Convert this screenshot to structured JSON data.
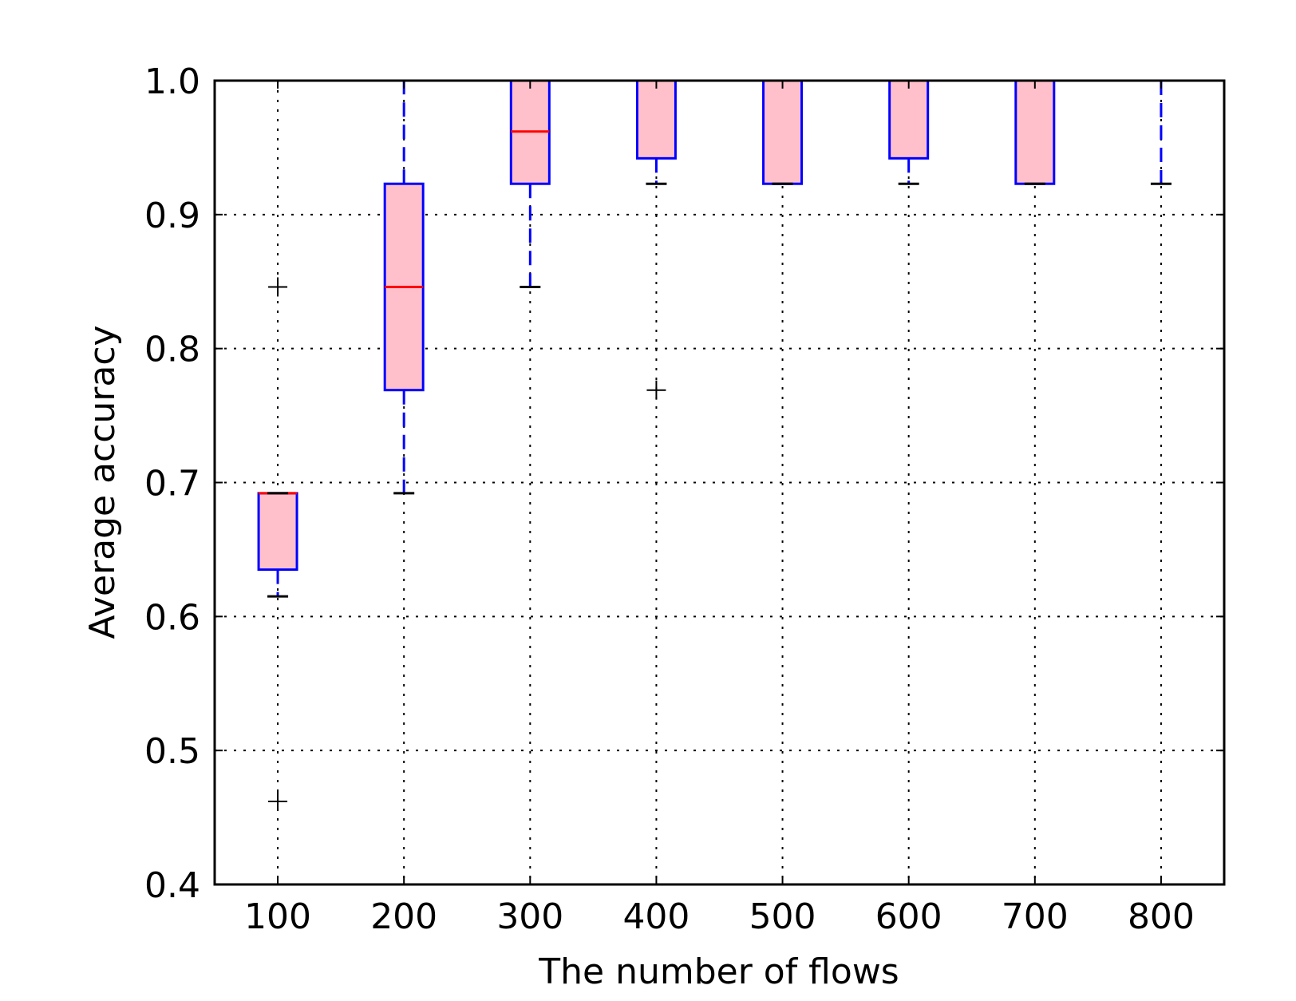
{
  "chart_data": {
    "type": "boxplot",
    "title": "",
    "xlabel": "The number of flows",
    "ylabel": "Average accuracy",
    "categories": [
      "100",
      "200",
      "300",
      "400",
      "500",
      "600",
      "700",
      "800"
    ],
    "ylim": [
      0.4,
      1.0
    ],
    "yticks": [
      "0.4",
      "0.5",
      "0.6",
      "0.7",
      "0.8",
      "0.9",
      "1.0"
    ],
    "grid": true,
    "boxes": [
      {
        "category": "100",
        "whisker_low": 0.615,
        "q1": 0.635,
        "median": 0.692,
        "q3": 0.692,
        "whisker_high": 0.692,
        "outliers": [
          0.846,
          0.462
        ]
      },
      {
        "category": "200",
        "whisker_low": 0.692,
        "q1": 0.769,
        "median": 0.846,
        "q3": 0.923,
        "whisker_high": 1.0,
        "outliers": []
      },
      {
        "category": "300",
        "whisker_low": 0.846,
        "q1": 0.923,
        "median": 0.962,
        "q3": 1.0,
        "whisker_high": 1.0,
        "outliers": []
      },
      {
        "category": "400",
        "whisker_low": 0.923,
        "q1": 0.942,
        "median": 1.0,
        "q3": 1.0,
        "whisker_high": 1.0,
        "outliers": [
          0.769
        ]
      },
      {
        "category": "500",
        "whisker_low": 0.923,
        "q1": 0.923,
        "median": 1.0,
        "q3": 1.0,
        "whisker_high": 1.0,
        "outliers": []
      },
      {
        "category": "600",
        "whisker_low": 0.923,
        "q1": 0.942,
        "median": 1.0,
        "q3": 1.0,
        "whisker_high": 1.0,
        "outliers": []
      },
      {
        "category": "700",
        "whisker_low": 0.923,
        "q1": 0.923,
        "median": 1.0,
        "q3": 1.0,
        "whisker_high": 1.0,
        "outliers": []
      },
      {
        "category": "800",
        "whisker_low": 0.923,
        "q1": 1.0,
        "median": 1.0,
        "q3": 1.0,
        "whisker_high": 1.0,
        "outliers": []
      }
    ],
    "colors": {
      "box_fill": "#ffc0cb",
      "box_edge": "#0000ff",
      "median": "#ff0000",
      "whisker": "#0000ff",
      "cap": "#000000",
      "outlier": "#000000",
      "grid": "#000000"
    }
  }
}
